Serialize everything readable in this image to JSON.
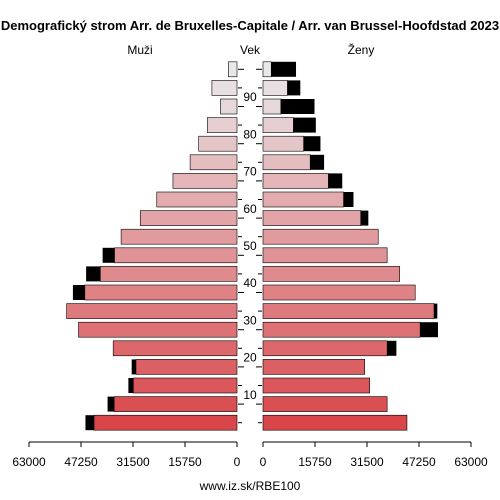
{
  "chart_data": {
    "type": "bar",
    "title": "Demografický strom Arr. de Bruxelles-Capitale / Arr. van Brussel-Hoofdstad 2023",
    "left_label": "Muži",
    "center_label": "Vek",
    "right_label": "Ženy",
    "footer": "www.iz.sk/RBE100",
    "xlim": [
      0,
      63000
    ],
    "x_ticks": [
      "63000",
      "47250",
      "31500",
      "15750",
      "0",
      "0",
      "15750",
      "31500",
      "47250",
      "63000"
    ],
    "age_ticks": [
      "10",
      "20",
      "30",
      "40",
      "50",
      "60",
      "70",
      "80",
      "90"
    ],
    "age_groups": [
      "0-4",
      "5-9",
      "10-14",
      "15-19",
      "20-24",
      "25-29",
      "30-34",
      "35-39",
      "40-44",
      "45-49",
      "50-54",
      "55-59",
      "60-64",
      "65-69",
      "70-74",
      "75-79",
      "80-84",
      "85-89",
      "90-94",
      "95+"
    ],
    "series": [
      {
        "name": "Muži",
        "values": [
          43300,
          37200,
          31400,
          30600,
          37500,
          48000,
          51600,
          46100,
          41400,
          37100,
          35100,
          29300,
          24300,
          19400,
          14200,
          11600,
          9000,
          5000,
          7600,
          2600
        ],
        "surplus": [
          2600,
          2000,
          1500,
          1300,
          0,
          0,
          0,
          3600,
          4300,
          3600,
          0,
          0,
          0,
          0,
          0,
          0,
          0,
          0,
          0,
          0
        ]
      },
      {
        "name": "Ženy",
        "values": [
          43600,
          37600,
          32300,
          30800,
          37600,
          47600,
          51800,
          46100,
          41400,
          37600,
          34900,
          29600,
          24400,
          19800,
          14300,
          12300,
          9200,
          5400,
          7400,
          2500
        ],
        "surplus": [
          0,
          0,
          0,
          0,
          2800,
          5400,
          1000,
          0,
          0,
          0,
          0,
          2300,
          3000,
          4200,
          4200,
          5100,
          6800,
          10200,
          3900,
          7500
        ]
      }
    ],
    "colors": {
      "bar_light": "#e8e8ea",
      "bar_dark": "#d9464a",
      "surplus": "#000000",
      "outline": "#000000"
    },
    "grid": false
  }
}
